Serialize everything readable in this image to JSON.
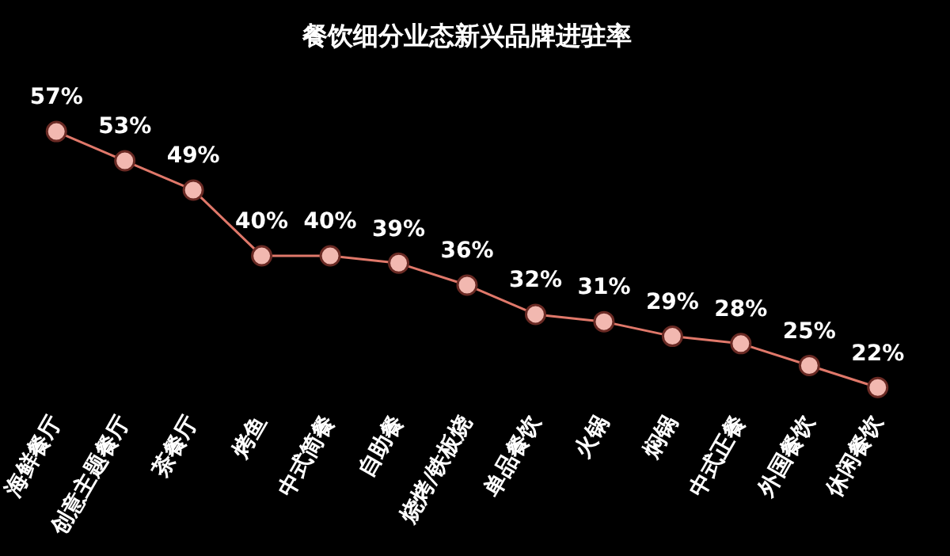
{
  "chart_data": {
    "type": "line",
    "title": "餐饮细分业态新兴品牌进驻率",
    "categories": [
      "海鲜餐厅",
      "创意主题餐厅",
      "茶餐厅",
      "烤鱼",
      "中式简餐",
      "自助餐",
      "烧烤/铁板烧",
      "单品餐饮",
      "火锅",
      "焖锅",
      "中式正餐",
      "外国餐饮",
      "休闲餐饮"
    ],
    "values": [
      57,
      53,
      49,
      40,
      40,
      39,
      36,
      32,
      31,
      29,
      28,
      25,
      22
    ],
    "value_labels": [
      "57%",
      "53%",
      "49%",
      "40%",
      "40%",
      "39%",
      "36%",
      "32%",
      "31%",
      "29%",
      "28%",
      "25%",
      "22%"
    ],
    "color": "#e0786a",
    "marker": "circle",
    "tick_labels": "x"
  }
}
